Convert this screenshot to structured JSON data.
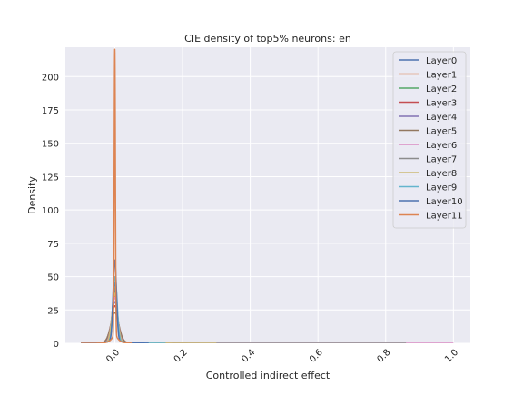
{
  "chart_data": {
    "type": "line",
    "title": "CIE density of top5% neurons: en",
    "xlabel": "Controlled indirect effect",
    "ylabel": "Density",
    "xlim": [
      -0.146,
      1.05
    ],
    "ylim": [
      0,
      222
    ],
    "xticks": [
      0.0,
      0.2,
      0.4,
      0.6,
      0.8,
      1.0
    ],
    "xtick_labels": [
      "0.0",
      "0.2",
      "0.4",
      "0.6",
      "0.8",
      "1.0"
    ],
    "yticks": [
      0,
      25,
      50,
      75,
      100,
      125,
      150,
      175,
      200
    ],
    "ytick_labels": [
      "0",
      "25",
      "50",
      "75",
      "100",
      "125",
      "150",
      "175",
      "200"
    ],
    "grid": true,
    "legend_position": "top-right",
    "background": "#eaeaf2",
    "series": [
      {
        "name": "Layer0",
        "color": "#4c72b0",
        "peak_x": 0.0,
        "peak": 44,
        "width": 0.006,
        "tail_end": 0.05
      },
      {
        "name": "Layer1",
        "color": "#dd8452",
        "peak_x": 0.0,
        "peak": 34,
        "width": 0.0075,
        "tail_end": 0.06
      },
      {
        "name": "Layer2",
        "color": "#55a868",
        "peak_x": 0.0,
        "peak": 38,
        "width": 0.007,
        "tail_end": 0.08
      },
      {
        "name": "Layer3",
        "color": "#c44e52",
        "peak_x": 0.0,
        "peak": 27,
        "width": 0.01,
        "tail_end": 0.12
      },
      {
        "name": "Layer4",
        "color": "#8172b3",
        "peak_x": 0.0,
        "peak": 30,
        "width": 0.009,
        "tail_end": 0.2
      },
      {
        "name": "Layer5",
        "color": "#937860",
        "peak_x": 0.0,
        "peak": 22,
        "width": 0.012,
        "tail_end": 0.25
      },
      {
        "name": "Layer6",
        "color": "#da8bc3",
        "peak_x": 0.0,
        "peak": 33,
        "width": 0.0085,
        "tail_end": 1.0
      },
      {
        "name": "Layer7",
        "color": "#8c8c8c",
        "peak_x": 0.0,
        "peak": 40,
        "width": 0.007,
        "tail_end": 0.86
      },
      {
        "name": "Layer8",
        "color": "#ccb974",
        "peak_x": 0.0,
        "peak": 36,
        "width": 0.008,
        "tail_end": 0.3
      },
      {
        "name": "Layer9",
        "color": "#64b5cd",
        "peak_x": 0.001,
        "peak": 48,
        "width": 0.006,
        "tail_end": 0.15
      },
      {
        "name": "Layer10",
        "color": "#4c72b0",
        "peak_x": 0.0,
        "peak": 60,
        "width": 0.005,
        "tail_end": 0.1
      },
      {
        "name": "Layer11",
        "color": "#dd8452",
        "peak_x": 0.0,
        "peak": 212,
        "width": 0.0017,
        "tail_end": 0.05
      }
    ]
  }
}
